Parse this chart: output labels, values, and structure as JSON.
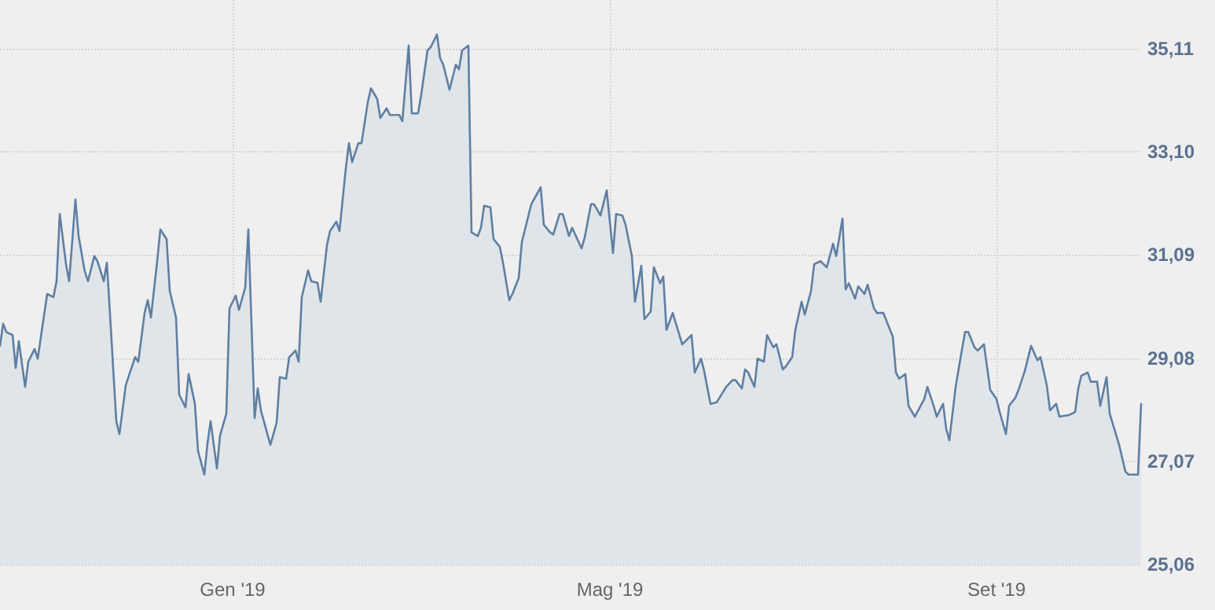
{
  "chart_data": {
    "type": "area",
    "xlim": [
      "2018-10-19",
      "2019-10-17"
    ],
    "ylim": [
      25.06,
      36.06
    ],
    "xticks": [
      {
        "value": "2019-01-01",
        "label": "Gen '19"
      },
      {
        "value": "2019-05-01",
        "label": "Mag '19"
      },
      {
        "value": "2019-09-01",
        "label": "Set '19"
      }
    ],
    "yticks": [
      {
        "value": 25.06,
        "label": "25,06"
      },
      {
        "value": 27.07,
        "label": "27,07"
      },
      {
        "value": 29.08,
        "label": "29,08"
      },
      {
        "value": 31.09,
        "label": "31,09"
      },
      {
        "value": 33.1,
        "label": "33,10"
      },
      {
        "value": 35.11,
        "label": "35,11"
      }
    ],
    "grid": true,
    "marker": "none",
    "line_style": "solid",
    "series": [
      {
        "color": "#5f7fa3",
        "x": [
          "2018-10-19",
          "2018-10-20",
          "2018-10-21",
          "2018-10-23",
          "2018-10-24",
          "2018-10-25",
          "2018-10-27",
          "2018-10-28",
          "2018-10-30",
          "2018-10-31",
          "2018-11-03",
          "2018-11-05",
          "2018-11-06",
          "2018-11-07",
          "2018-11-09",
          "2018-11-10",
          "2018-11-12",
          "2018-11-13",
          "2018-11-15",
          "2018-11-16",
          "2018-11-18",
          "2018-11-19",
          "2018-11-21",
          "2018-11-22",
          "2018-11-23",
          "2018-11-25",
          "2018-11-26",
          "2018-11-28",
          "2018-11-29",
          "2018-12-01",
          "2018-12-02",
          "2018-12-04",
          "2018-12-05",
          "2018-12-06",
          "2018-12-08",
          "2018-12-09",
          "2018-12-11",
          "2018-12-12",
          "2018-12-14",
          "2018-12-15",
          "2018-12-17",
          "2018-12-18",
          "2018-12-20",
          "2018-12-21",
          "2018-12-23",
          "2018-12-24",
          "2018-12-25",
          "2018-12-27",
          "2018-12-28",
          "2018-12-30",
          "2018-12-31",
          "2019-01-02",
          "2019-01-03",
          "2019-01-05",
          "2019-01-06",
          "2019-01-08",
          "2019-01-09",
          "2019-01-10",
          "2019-01-13",
          "2019-01-15",
          "2019-01-16",
          "2019-01-18",
          "2019-01-19",
          "2019-01-21",
          "2019-01-22",
          "2019-01-23",
          "2019-01-25",
          "2019-01-26",
          "2019-01-28",
          "2019-01-29",
          "2019-01-31",
          "2019-02-01",
          "2019-02-03",
          "2019-02-04",
          "2019-02-06",
          "2019-02-07",
          "2019-02-08",
          "2019-02-10",
          "2019-02-11",
          "2019-02-13",
          "2019-02-14",
          "2019-02-16",
          "2019-02-17",
          "2019-02-19",
          "2019-02-20",
          "2019-02-23",
          "2019-02-24",
          "2019-02-26",
          "2019-02-27",
          "2019-03-01",
          "2019-03-02",
          "2019-03-04",
          "2019-03-05",
          "2019-03-07",
          "2019-03-08",
          "2019-03-09",
          "2019-03-11",
          "2019-03-13",
          "2019-03-14",
          "2019-03-15",
          "2019-03-17",
          "2019-03-18",
          "2019-03-20",
          "2019-03-21",
          "2019-03-22",
          "2019-03-24",
          "2019-03-25",
          "2019-03-27",
          "2019-03-28",
          "2019-03-30",
          "2019-03-31",
          "2019-04-02",
          "2019-04-03",
          "2019-04-06",
          "2019-04-09",
          "2019-04-10",
          "2019-04-12",
          "2019-04-13",
          "2019-04-15",
          "2019-04-16",
          "2019-04-18",
          "2019-04-19",
          "2019-04-22",
          "2019-04-23",
          "2019-04-25",
          "2019-04-26",
          "2019-04-28",
          "2019-04-30",
          "2019-05-02",
          "2019-05-03",
          "2019-05-05",
          "2019-05-06",
          "2019-05-08",
          "2019-05-09",
          "2019-05-11",
          "2019-05-12",
          "2019-05-14",
          "2019-05-15",
          "2019-05-17",
          "2019-05-18",
          "2019-05-19",
          "2019-05-21",
          "2019-05-24",
          "2019-05-25",
          "2019-05-27",
          "2019-05-28",
          "2019-05-30",
          "2019-05-31",
          "2019-06-02",
          "2019-06-04",
          "2019-06-07",
          "2019-06-09",
          "2019-06-10",
          "2019-06-12",
          "2019-06-13",
          "2019-06-14",
          "2019-06-16",
          "2019-06-17",
          "2019-06-19",
          "2019-06-20",
          "2019-06-22",
          "2019-06-23",
          "2019-06-25",
          "2019-06-26",
          "2019-06-28",
          "2019-06-29",
          "2019-07-01",
          "2019-07-02",
          "2019-07-04",
          "2019-07-05",
          "2019-07-07",
          "2019-07-09",
          "2019-07-11",
          "2019-07-12",
          "2019-07-14",
          "2019-07-15",
          "2019-07-16",
          "2019-07-18",
          "2019-07-19",
          "2019-07-21",
          "2019-07-22",
          "2019-07-24",
          "2019-07-25",
          "2019-07-27",
          "2019-07-30",
          "2019-07-31",
          "2019-08-01",
          "2019-08-03",
          "2019-08-04",
          "2019-08-06",
          "2019-08-09",
          "2019-08-10",
          "2019-08-12",
          "2019-08-13",
          "2019-08-15",
          "2019-08-16",
          "2019-08-17",
          "2019-08-19",
          "2019-08-20",
          "2019-08-22",
          "2019-08-23",
          "2019-08-25",
          "2019-08-26",
          "2019-08-28",
          "2019-08-30",
          "2019-09-01",
          "2019-09-02",
          "2019-09-04",
          "2019-09-05",
          "2019-09-07",
          "2019-09-08",
          "2019-09-10",
          "2019-09-12",
          "2019-09-14",
          "2019-09-15",
          "2019-09-17",
          "2019-09-18",
          "2019-09-20",
          "2019-09-21",
          "2019-09-24",
          "2019-09-26",
          "2019-09-27",
          "2019-09-28",
          "2019-09-30",
          "2019-10-01",
          "2019-10-03",
          "2019-10-04",
          "2019-10-06",
          "2019-10-07",
          "2019-10-10",
          "2019-10-12",
          "2019-10-13",
          "2019-10-16",
          "2019-10-17"
        ],
        "values": [
          29.32,
          29.75,
          29.59,
          29.53,
          28.89,
          29.41,
          28.52,
          29.01,
          29.26,
          29.07,
          30.33,
          30.27,
          30.58,
          31.89,
          30.91,
          30.58,
          32.17,
          31.46,
          30.76,
          30.58,
          31.07,
          30.97,
          30.58,
          30.94,
          29.93,
          27.85,
          27.6,
          28.55,
          28.74,
          29.1,
          29.01,
          29.96,
          30.21,
          29.87,
          30.97,
          31.59,
          31.4,
          30.39,
          29.87,
          28.37,
          28.12,
          28.77,
          28.19,
          27.27,
          26.81,
          27.42,
          27.85,
          26.93,
          27.57,
          28.0,
          30.05,
          30.3,
          30.02,
          30.45,
          31.59,
          27.91,
          28.49,
          28.06,
          27.39,
          27.82,
          28.71,
          28.68,
          29.1,
          29.23,
          29.01,
          30.27,
          30.79,
          30.58,
          30.55,
          30.18,
          31.28,
          31.56,
          31.74,
          31.56,
          32.78,
          33.27,
          32.9,
          33.27,
          33.27,
          34.07,
          34.34,
          34.13,
          33.76,
          33.95,
          33.82,
          33.82,
          33.7,
          35.17,
          33.85,
          33.85,
          34.22,
          35.08,
          35.14,
          35.39,
          34.93,
          34.8,
          34.31,
          34.8,
          34.71,
          35.08,
          35.17,
          31.53,
          31.46,
          31.62,
          32.05,
          32.02,
          31.4,
          31.25,
          30.94,
          30.21,
          30.33,
          30.64,
          31.34,
          32.08,
          32.41,
          31.68,
          31.53,
          31.49,
          31.89,
          31.89,
          31.46,
          31.62,
          31.22,
          31.43,
          32.08,
          32.08,
          31.86,
          32.35,
          31.13,
          31.89,
          31.86,
          31.68,
          31.07,
          30.18,
          30.88,
          29.84,
          29.99,
          30.85,
          30.54,
          30.67,
          29.63,
          29.96,
          29.35,
          29.41,
          29.53,
          28.8,
          29.07,
          28.83,
          28.19,
          28.22,
          28.52,
          28.65,
          28.65,
          28.49,
          28.86,
          28.8,
          28.52,
          29.07,
          29.01,
          29.53,
          29.29,
          29.35,
          28.86,
          28.92,
          29.1,
          29.63,
          30.18,
          29.93,
          30.39,
          30.91,
          30.97,
          30.85,
          31.31,
          31.07,
          31.8,
          30.42,
          30.54,
          30.24,
          30.48,
          30.33,
          30.51,
          30.05,
          29.96,
          29.96,
          29.5,
          28.8,
          28.68,
          28.77,
          28.15,
          27.94,
          28.28,
          28.52,
          28.15,
          27.94,
          28.19,
          27.7,
          27.48,
          28.52,
          28.89,
          29.59,
          29.59,
          29.29,
          29.23,
          29.35,
          28.46,
          28.28,
          28.03,
          27.6,
          28.15,
          28.31,
          28.46,
          28.83,
          29.32,
          29.04,
          29.1,
          28.55,
          28.06,
          28.19,
          27.94,
          27.97,
          28.03,
          28.49,
          28.74,
          28.8,
          28.62,
          28.62,
          28.15,
          28.71,
          28.0,
          27.39,
          26.87,
          26.81,
          26.81,
          28.19
        ]
      }
    ]
  }
}
